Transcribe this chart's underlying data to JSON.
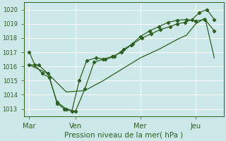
{
  "xlabel": "Pression niveau de la mer( hPa )",
  "bg_color": "#cce8e8",
  "grid_color": "#ffffff",
  "line_color": "#2d6020",
  "ylim": [
    1012.5,
    1020.5
  ],
  "day_labels": [
    "Mar",
    "Ven",
    "Mer",
    "Jeu"
  ],
  "day_positions": [
    0,
    2.5,
    6,
    9
  ],
  "vline_positions": [
    0,
    2.5,
    6,
    9
  ],
  "series1_x": [
    0.0,
    0.3,
    0.7,
    1.1,
    1.5,
    1.9,
    2.3,
    2.7,
    3.1,
    3.6,
    4.1,
    4.6,
    5.1,
    5.6,
    6.1,
    6.6,
    7.1,
    7.6,
    8.0,
    8.4,
    8.8,
    9.2,
    9.6,
    10.0
  ],
  "series1_y": [
    1017.0,
    1016.1,
    1015.5,
    1015.2,
    1013.4,
    1013.0,
    1012.85,
    1015.0,
    1016.4,
    1016.6,
    1016.5,
    1016.7,
    1017.2,
    1017.6,
    1018.0,
    1018.3,
    1018.6,
    1018.8,
    1019.0,
    1019.1,
    1019.3,
    1019.8,
    1020.0,
    1019.3
  ],
  "series2_x": [
    0.0,
    0.5,
    1.0,
    1.5,
    2.0,
    2.5,
    3.0,
    3.5,
    4.0,
    4.5,
    5.0,
    5.5,
    6.0,
    6.5,
    7.0,
    7.5,
    8.0,
    8.5,
    9.0,
    9.5,
    10.0
  ],
  "series2_y": [
    1016.1,
    1016.1,
    1015.5,
    1013.5,
    1013.0,
    1012.85,
    1014.4,
    1016.3,
    1016.5,
    1016.7,
    1017.0,
    1017.5,
    1018.1,
    1018.5,
    1018.8,
    1019.1,
    1019.25,
    1019.3,
    1019.2,
    1019.3,
    1018.5
  ],
  "series3_x": [
    0.0,
    1.0,
    2.0,
    3.0,
    4.0,
    5.0,
    6.0,
    7.0,
    8.0,
    8.5,
    9.0,
    9.5,
    10.0
  ],
  "series3_y": [
    1016.1,
    1015.5,
    1014.2,
    1014.3,
    1015.0,
    1015.8,
    1016.6,
    1017.2,
    1017.9,
    1018.2,
    1019.0,
    1019.4,
    1016.6
  ]
}
